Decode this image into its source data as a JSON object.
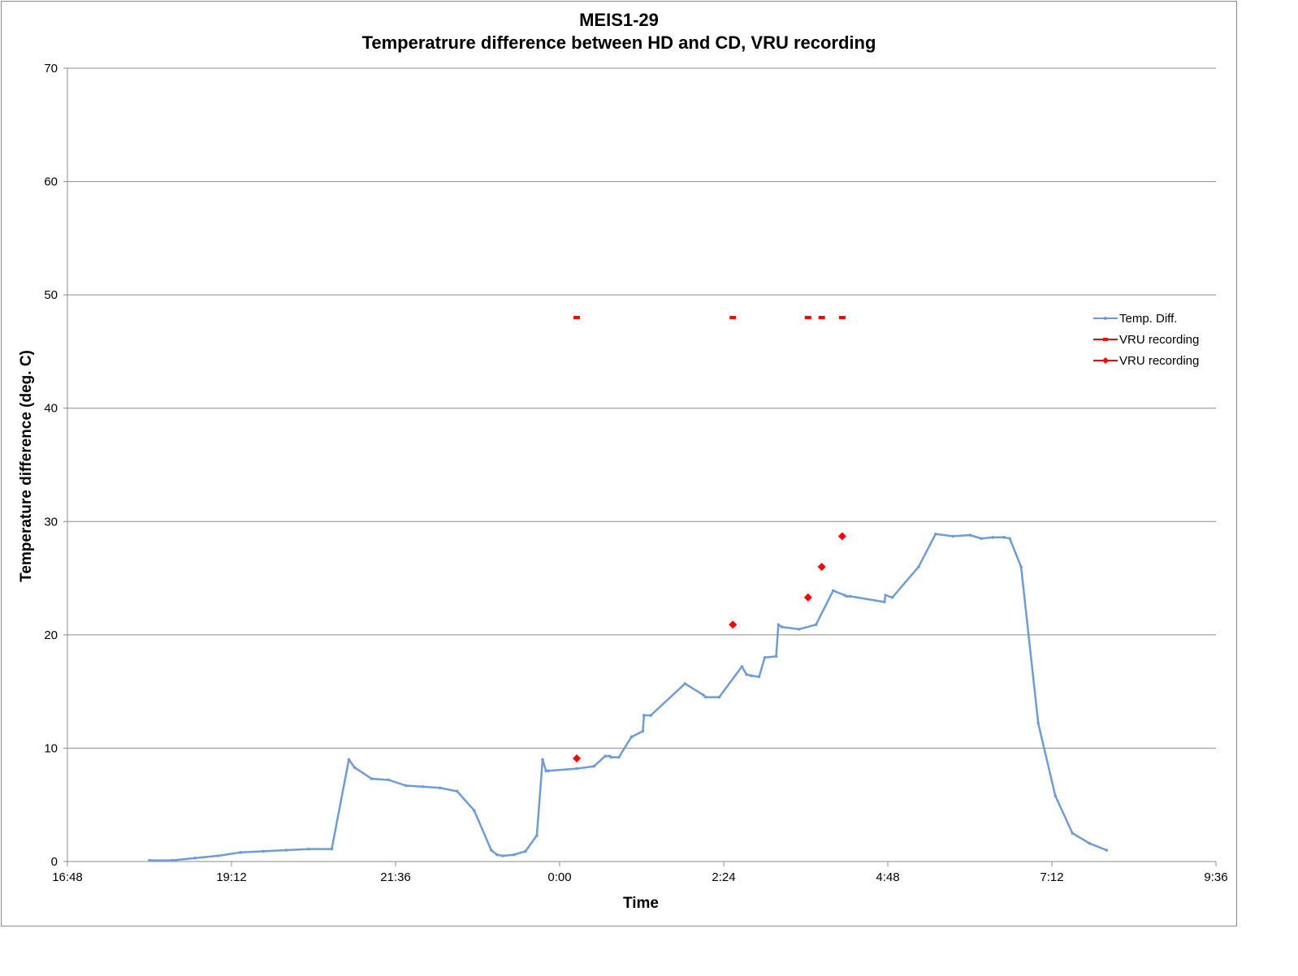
{
  "chart_data": {
    "type": "line",
    "title": "MEIS1-29",
    "subtitle": "Temperatrure difference between HD and CD, VRU recording",
    "xlabel": "Time",
    "ylabel": "Temperature difference (deg. C)",
    "xlim": [
      "16:48",
      "9:36"
    ],
    "ylim": [
      0,
      70
    ],
    "x_tick_labels": [
      "16:48",
      "19:12",
      "21:36",
      "0:00",
      "2:24",
      "4:48",
      "7:12",
      "9:36"
    ],
    "y_tick_labels": [
      "0",
      "10",
      "20",
      "30",
      "40",
      "50",
      "60",
      "70"
    ],
    "grid": "horizontal",
    "legend_position": "right",
    "colors": {
      "temp_diff": "#6f9bd6",
      "vru": "#ff0000",
      "grid": "#8c8c8c",
      "frame": "#8c8c8c"
    },
    "series": [
      {
        "name": "Temp. Diff.",
        "x": [
          "18:00",
          "18:20",
          "18:40",
          "19:00",
          "19:20",
          "19:40",
          "20:00",
          "20:20",
          "20:40",
          "20:55",
          "21:00",
          "21:15",
          "21:30",
          "21:45",
          "22:00",
          "22:15",
          "22:30",
          "22:45",
          "23:00",
          "23:05",
          "23:10",
          "23:20",
          "23:30",
          "23:40",
          "23:45",
          "23:48",
          "23:50",
          "24:15",
          "24:30",
          "24:40",
          "24:44",
          "24:45",
          "24:52",
          "25:03",
          "25:13",
          "25:14",
          "25:20",
          "25:50",
          "26:06",
          "26:08",
          "26:20",
          "26:40",
          "26:44",
          "26:48",
          "26:55",
          "27:00",
          "27:10",
          "27:12",
          "27:15",
          "27:30",
          "27:45",
          "28:00",
          "28:10",
          "28:12",
          "28:15",
          "28:45",
          "28:46",
          "28:52",
          "29:15",
          "29:30",
          "29:45",
          "30:00",
          "30:10",
          "30:20",
          "30:30",
          "30:35",
          "30:45",
          "31:00",
          "31:15",
          "31:30",
          "31:45",
          "32:00"
        ],
        "y": [
          0.1,
          0.1,
          0.3,
          0.5,
          0.8,
          0.9,
          1.0,
          1.1,
          1.1,
          9.0,
          8.3,
          7.3,
          7.2,
          6.7,
          6.6,
          6.5,
          6.2,
          4.5,
          1.0,
          0.6,
          0.5,
          0.6,
          0.9,
          2.3,
          9.0,
          8.0,
          8.0,
          8.2,
          8.4,
          9.3,
          9.3,
          9.2,
          9.2,
          11.0,
          11.5,
          12.9,
          12.9,
          15.7,
          14.7,
          14.5,
          14.5,
          17.2,
          16.5,
          16.4,
          16.3,
          18.0,
          18.1,
          20.9,
          20.7,
          20.5,
          20.9,
          23.9,
          23.5,
          23.4,
          23.4,
          22.9,
          23.5,
          23.3,
          26.0,
          28.9,
          28.7,
          28.8,
          28.5,
          28.6,
          28.6,
          28.5,
          26.0,
          12.2,
          5.8,
          2.5,
          1.6,
          1.0
        ]
      },
      {
        "name": "VRU recording",
        "x": [
          "0:15",
          "2:32",
          "3:38",
          "3:50",
          "4:08"
        ],
        "y": [
          48,
          48,
          48,
          48,
          48
        ]
      },
      {
        "name": "VRU recording",
        "x": [
          "0:15",
          "2:32",
          "3:38",
          "3:50",
          "4:08"
        ],
        "y": [
          9.1,
          20.9,
          23.3,
          26.0,
          28.7
        ]
      }
    ]
  }
}
